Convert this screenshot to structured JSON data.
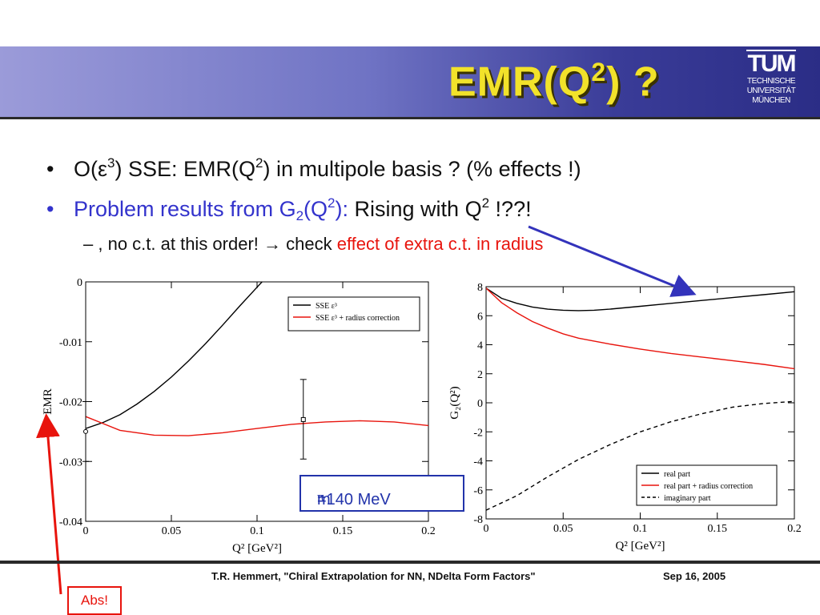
{
  "slide": {
    "title_main": "EMR(Q",
    "title_sup": "2",
    "title_end": ") ?",
    "logo": {
      "mark": "TUM",
      "line1": "TECHNISCHE",
      "line2": "UNIVERSITÄT",
      "line3": "MÜNCHEN"
    },
    "bullets": [
      {
        "bullet": "•",
        "a": "O(ε",
        "a_sup": "3",
        "b": ") SSE: EMR(Q",
        "b_sup": "2",
        "c": ") in multipole basis ? (% effects !)"
      },
      {
        "bullet": "•",
        "a": "Problem results from G",
        "a_sub": "2",
        "b": "(Q",
        "b_sup": "2",
        "c": "):",
        "d": " Rising with Q",
        "d_sup": "2",
        "e": " !??!"
      }
    ],
    "sub_bullet": {
      "dash": "–",
      "text": " , no c.t. at this order! → check ",
      "highlight": "effect of extra c.t. in radius"
    },
    "mpi_box": {
      "m": "m",
      "sub": "π",
      "rest": "=140 MeV"
    },
    "footer": {
      "text": "T.R. Hemmert, \"Chiral Extrapolation for NN, NDelta Form Factors\"",
      "date": "Sep 16, 2005"
    },
    "abs_label": "Abs!",
    "colors": {
      "blue_text": "#3333cc",
      "red_text": "#e8140d",
      "title_yellow": "#f2e22a",
      "arrow_blue": "#3333bb",
      "arrow_red": "#e8140d"
    }
  },
  "chart_data": [
    {
      "type": "line",
      "xlabel": "Q² [GeV²]",
      "ylabel": "EMR",
      "xlim": [
        0,
        0.2
      ],
      "ylim": [
        -0.04,
        0
      ],
      "xticks": [
        "0",
        "0.05",
        "0.1",
        "0.15",
        "0.2"
      ],
      "yticks": [
        "0",
        "-0.01",
        "-0.02",
        "-0.03",
        "-0.04"
      ],
      "legend": {
        "placement": "top-right",
        "entries": [
          "SSE ε³",
          "SSE ε³ + radius correction"
        ]
      },
      "series": [
        {
          "name": "SSE ε³",
          "color": "#000000",
          "dash": false,
          "x": [
            0,
            0.01,
            0.02,
            0.03,
            0.04,
            0.05,
            0.06,
            0.07,
            0.08,
            0.09,
            0.1,
            0.11,
            0.115
          ],
          "y": [
            -0.0245,
            -0.0235,
            -0.0222,
            -0.0204,
            -0.0183,
            -0.0159,
            -0.0132,
            -0.0103,
            -0.0072,
            -0.004,
            -0.0009,
            0.0022,
            0.004
          ]
        },
        {
          "name": "SSE ε³ + radius correction",
          "color": "#e8140d",
          "dash": false,
          "x": [
            0,
            0.02,
            0.04,
            0.06,
            0.08,
            0.1,
            0.12,
            0.14,
            0.16,
            0.18,
            0.2
          ],
          "y": [
            -0.0225,
            -0.0248,
            -0.0256,
            -0.0257,
            -0.0252,
            -0.0245,
            -0.0238,
            -0.0234,
            -0.0232,
            -0.0234,
            -0.024
          ]
        }
      ],
      "points": [
        {
          "x": 0,
          "y": -0.025,
          "yerr_low": -0.03,
          "yerr_high": -0.02,
          "marker": "circle"
        },
        {
          "x": 0.127,
          "y": -0.023,
          "yerr_low": -0.0296,
          "yerr_high": -0.0163,
          "marker": "square"
        }
      ]
    },
    {
      "type": "line",
      "xlabel": "Q² [GeV²]",
      "ylabel": "G₂(Q²)",
      "xlim": [
        0,
        0.2
      ],
      "ylim": [
        -8,
        8
      ],
      "xticks": [
        "0",
        "0.05",
        "0.1",
        "0.15",
        "0.2"
      ],
      "yticks": [
        "8",
        "6",
        "4",
        "2",
        "0",
        "-2",
        "-4",
        "-6",
        "-8"
      ],
      "legend": {
        "placement": "bottom-right",
        "entries": [
          "real part",
          "real part + radius correction",
          "imaginary part"
        ]
      },
      "series": [
        {
          "name": "real part",
          "color": "#000000",
          "dash": false,
          "x": [
            0,
            0.01,
            0.02,
            0.03,
            0.04,
            0.05,
            0.06,
            0.07,
            0.08,
            0.1,
            0.12,
            0.14,
            0.16,
            0.18,
            0.2
          ],
          "y": [
            7.9,
            7.2,
            6.85,
            6.6,
            6.45,
            6.38,
            6.35,
            6.38,
            6.45,
            6.65,
            6.85,
            7.05,
            7.25,
            7.45,
            7.65
          ]
        },
        {
          "name": "real part + radius correction",
          "color": "#e8140d",
          "dash": false,
          "x": [
            0,
            0.01,
            0.02,
            0.03,
            0.04,
            0.05,
            0.06,
            0.08,
            0.1,
            0.12,
            0.14,
            0.16,
            0.18,
            0.2
          ],
          "y": [
            7.9,
            6.9,
            6.2,
            5.6,
            5.15,
            4.75,
            4.45,
            4.05,
            3.7,
            3.4,
            3.15,
            2.9,
            2.65,
            2.35
          ]
        },
        {
          "name": "imaginary part",
          "color": "#000000",
          "dash": true,
          "x": [
            0,
            0.02,
            0.04,
            0.06,
            0.08,
            0.1,
            0.12,
            0.14,
            0.16,
            0.18,
            0.2
          ],
          "y": [
            -7.4,
            -6.4,
            -5.1,
            -3.9,
            -2.9,
            -2.0,
            -1.3,
            -0.75,
            -0.3,
            -0.05,
            0.1
          ]
        }
      ]
    }
  ]
}
